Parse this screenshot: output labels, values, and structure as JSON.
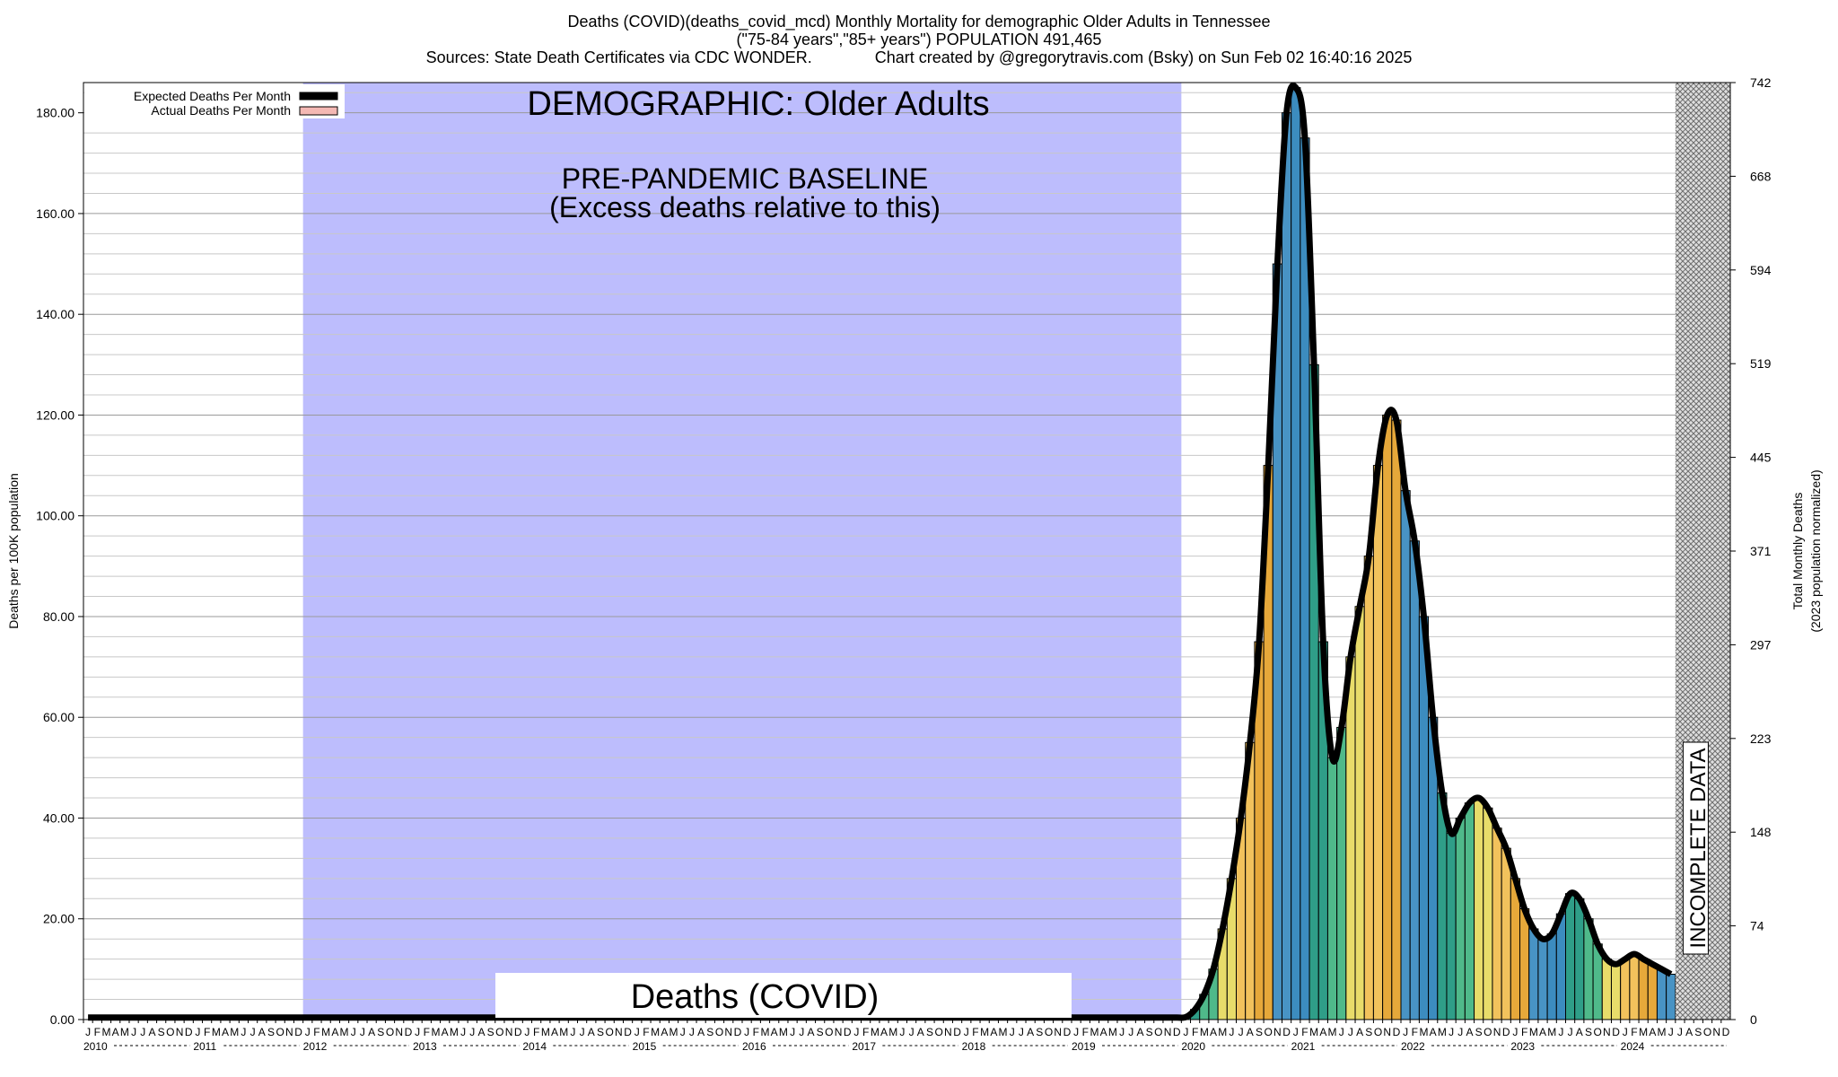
{
  "header": {
    "title_line1": "Deaths (COVID)(deaths_covid_mcd) Monthly Mortality for demographic Older Adults in Tennessee",
    "title_line2": "(\"75-84 years\",\"85+ years\") POPULATION 491,465",
    "title_line3": "Sources: State Death Certificates via CDC WONDER.              Chart created by @gregorytravis.com (Bsky) on Sun Feb 02 16:40:16 2025"
  },
  "colors": {
    "baseline_fill": "#bdbdfd",
    "curve": "#000000",
    "bar_palette": [
      "#2f9e88",
      "#4fb98a",
      "#e8dc6a",
      "#f2c25c",
      "#e6a83a",
      "#4893c4",
      "#3c8cbf"
    ],
    "legend_actual": "#f4b8b4"
  },
  "chart_data": {
    "type": "bar",
    "title": "DEMOGRAPHIC: Older Adults",
    "subtitle": "Deaths (COVID)",
    "ylabel": "Deaths per 100K population",
    "y2label": "Total Monthly Deaths\n(2023 population normalized)",
    "ylim": [
      0,
      186
    ],
    "y_ticks": [
      "0.00",
      "20.00",
      "40.00",
      "60.00",
      "80.00",
      "100.00",
      "120.00",
      "140.00",
      "160.00",
      "180.00"
    ],
    "y2_ticks": [
      "0",
      "74",
      "148",
      "223",
      "297",
      "371",
      "445",
      "519",
      "594",
      "668",
      "742"
    ],
    "x_start": "2010-01",
    "years": [
      "2010",
      "2011",
      "2012",
      "2013",
      "2014",
      "2015",
      "2016",
      "2017",
      "2018",
      "2019",
      "2020",
      "2021",
      "2022",
      "2023",
      "2024"
    ],
    "month_letters": [
      "J",
      "F",
      "M",
      "A",
      "M",
      "J",
      "J",
      "A",
      "S",
      "O",
      "N",
      "D"
    ],
    "baseline_region": {
      "start": "2012-01",
      "end": "2019-12",
      "label_line1": "PRE-PANDEMIC BASELINE",
      "label_line2": "(Excess deaths relative to this)"
    },
    "incomplete_region": {
      "start": "2024-07",
      "end": "2024-12",
      "label": "INCOMPLETE DATA"
    },
    "legend": {
      "expected": "Expected Deaths Per Month",
      "actual": "Actual Deaths Per Month",
      "placement": "top-left"
    },
    "series": [
      {
        "name": "Actual Deaths Per Month",
        "start": "2020-01",
        "values": [
          0.5,
          2,
          5,
          10,
          18,
          28,
          40,
          55,
          75,
          110,
          150,
          180,
          185,
          175,
          130,
          75,
          52,
          58,
          72,
          82,
          92,
          110,
          120,
          119,
          105,
          95,
          80,
          60,
          45,
          37,
          40,
          43,
          44,
          42,
          38,
          34,
          28,
          22,
          18,
          16,
          17,
          21,
          25,
          24,
          20,
          15,
          12,
          11,
          12,
          13,
          12,
          11,
          10,
          9
        ]
      },
      {
        "name": "Expected Deaths Per Month",
        "start": "2010-01",
        "values_note_free": true,
        "pre_values": 0.4
      }
    ]
  }
}
